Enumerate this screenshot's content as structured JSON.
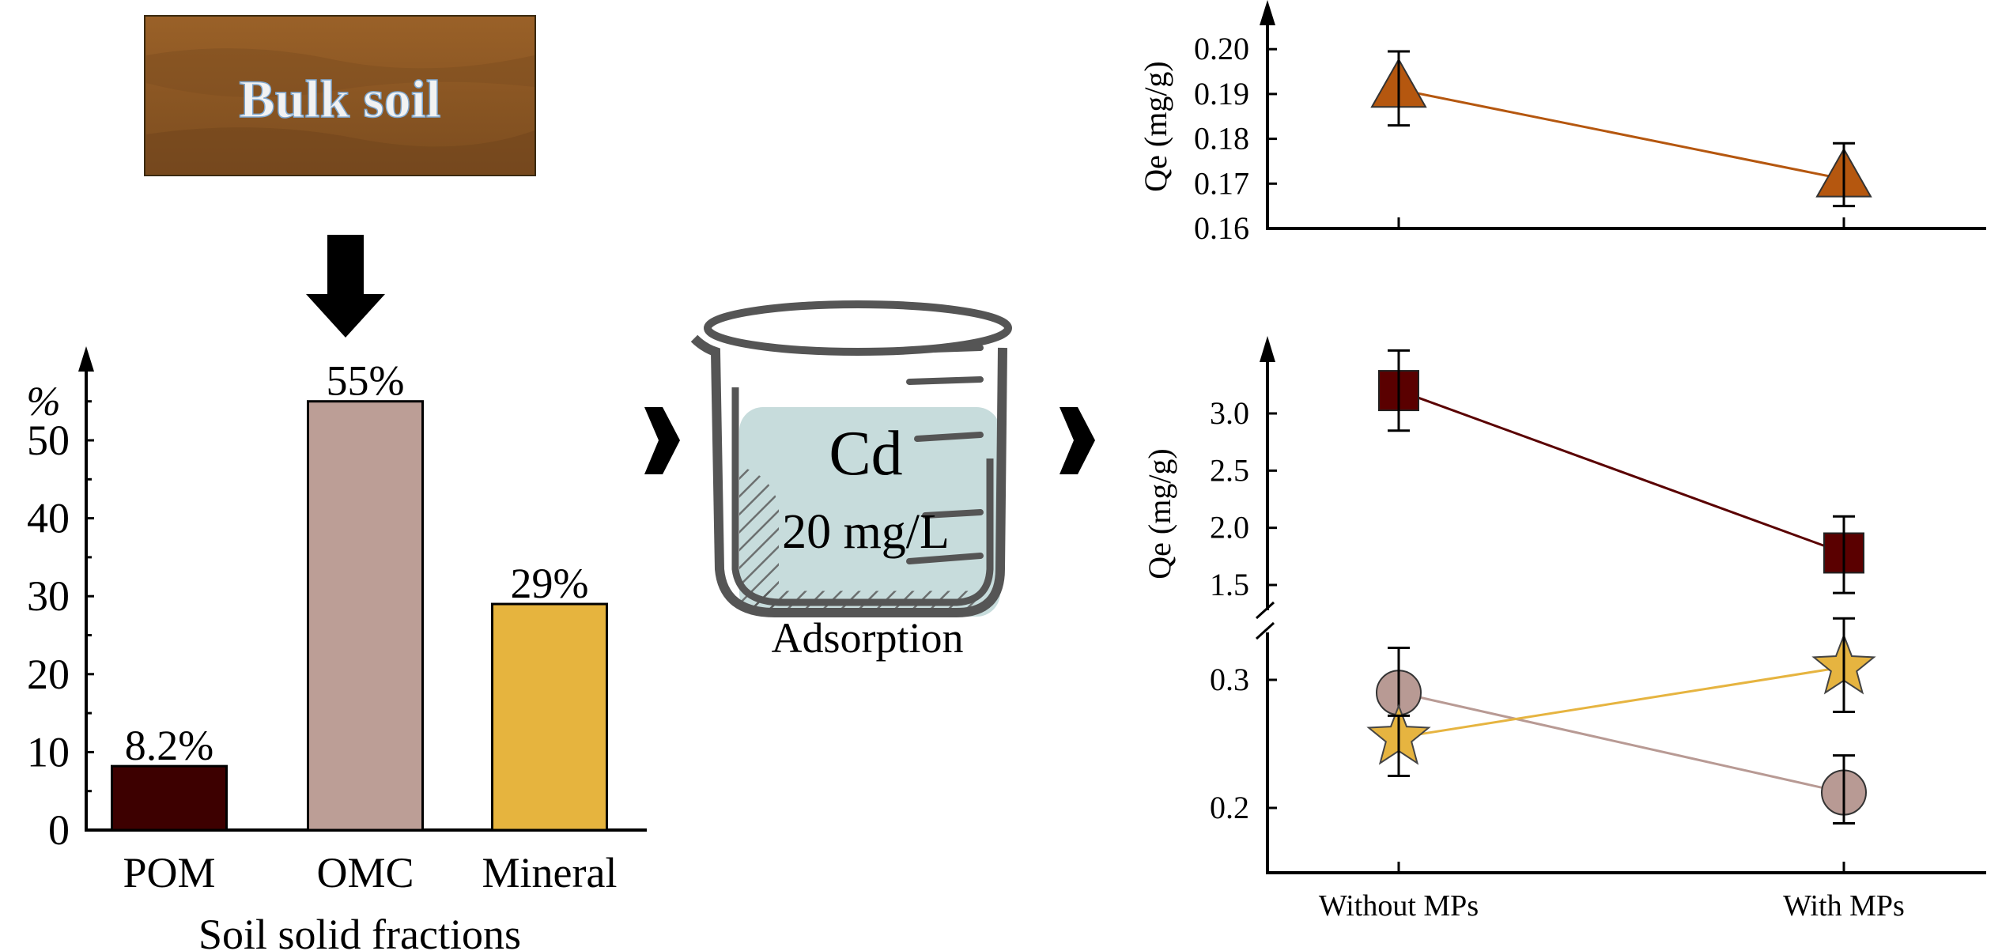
{
  "bulk_soil": {
    "label": "Bulk soil"
  },
  "beaker": {
    "solute": "Cd",
    "concentration": "20 mg/L",
    "caption": "Adsorption"
  },
  "colors": {
    "POM": "#3d0000",
    "OMC": "#bc9e96",
    "Mineral": "#e6b43e",
    "bulk": "#b5570f",
    "POM_marker": "#5a0000",
    "OMC_marker": "#b89a94",
    "Mineral_marker": "#e6b440"
  },
  "chart_data": [
    {
      "type": "bar",
      "title": "",
      "xlabel": "Soil solid fractions",
      "ylabel": "%",
      "categories": [
        "POM",
        "OMC",
        "Mineral"
      ],
      "values": [
        8.2,
        55,
        29
      ],
      "data_labels": [
        "8.2%",
        "55%",
        "29%"
      ],
      "ylim": [
        0,
        60
      ],
      "yticks": [
        0,
        10,
        20,
        30,
        40,
        50
      ],
      "ytick_labels": [
        "0",
        "10",
        "20",
        "30",
        "40",
        "50"
      ]
    },
    {
      "type": "line",
      "title": "",
      "ylabel": "Qe (mg/g)",
      "categories": [
        "Without MPs",
        "With MPs"
      ],
      "ylim": [
        0.16,
        0.205
      ],
      "yticks": [
        0.16,
        0.17,
        0.18,
        0.19,
        0.2
      ],
      "ytick_labels": [
        "0.16",
        "0.17",
        "0.18",
        "0.19",
        "0.20"
      ],
      "series": [
        {
          "name": "Bulk soil",
          "marker": "triangle",
          "values": [
            0.191,
            0.171
          ],
          "err_low": [
            0.183,
            0.165
          ],
          "err_high": [
            0.1995,
            0.179
          ]
        }
      ]
    },
    {
      "type": "line",
      "title": "",
      "ylabel": "Qe (mg/g)",
      "xlabel": "",
      "categories": [
        "Without MPs",
        "With MPs"
      ],
      "axis_break": [
        0.34,
        1.35
      ],
      "yticks": [
        0.2,
        0.3,
        1.5,
        2.0,
        2.5,
        3.0
      ],
      "ytick_labels": [
        "0.2",
        "0.3",
        "1.5",
        "2.0",
        "2.5",
        "3.0"
      ],
      "series": [
        {
          "name": "POM",
          "marker": "square",
          "values": [
            3.2,
            1.78
          ],
          "err_low": [
            2.85,
            1.43
          ],
          "err_high": [
            3.55,
            2.1
          ]
        },
        {
          "name": "OMC",
          "marker": "circle",
          "values": [
            0.29,
            0.212
          ],
          "err_low": [
            0.255,
            0.188
          ],
          "err_high": [
            0.325,
            0.241
          ]
        },
        {
          "name": "Mineral",
          "marker": "star",
          "values": [
            0.255,
            0.31
          ],
          "err_low": [
            0.225,
            0.275
          ],
          "err_high": [
            0.272,
            0.348
          ]
        }
      ]
    }
  ]
}
